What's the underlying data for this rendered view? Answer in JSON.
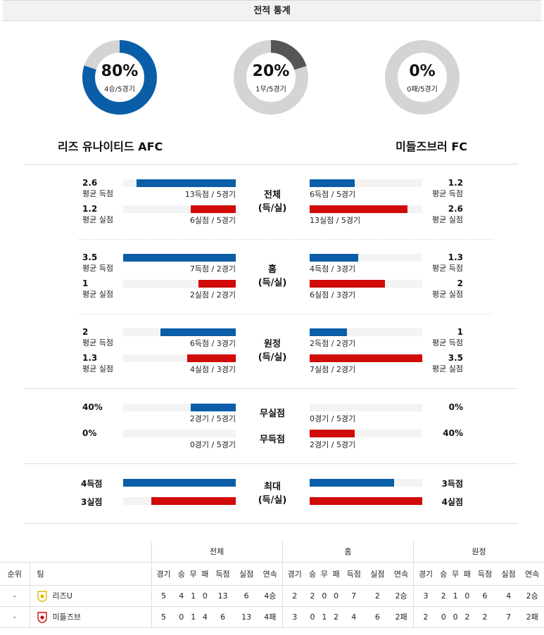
{
  "title": "전적 통계",
  "donuts": [
    {
      "pct": "80%",
      "sub": "4승/5경기",
      "fraction": 0.8,
      "color": "#0a5ea8"
    },
    {
      "pct": "20%",
      "sub": "1무/5경기",
      "fraction": 0.2,
      "color": "#555555"
    },
    {
      "pct": "0%",
      "sub": "0패/5경기",
      "fraction": 0.0,
      "color": "#555555"
    }
  ],
  "home_team": "리즈 유나이티드 AFC",
  "away_team": "미들즈브러 FC",
  "sections": [
    {
      "mid": [
        "전체",
        "(득/실)"
      ],
      "rows": [
        {
          "lval": "2.6",
          "llbl": "평균 득점",
          "lfrac": 0.88,
          "lcap": "13득점 / 5경기",
          "lcolor": "blue",
          "rval": "1.2",
          "rlbl": "평균 득점",
          "rfrac": 0.4,
          "rcap": "6득점 / 5경기",
          "rcolor": "blue"
        },
        {
          "lval": "1.2",
          "llbl": "평균 실점",
          "lfrac": 0.4,
          "lcap": "6실점 / 5경기",
          "lcolor": "red",
          "rval": "2.6",
          "rlbl": "평균 실점",
          "rfrac": 0.87,
          "rcap": "13실점 / 5경기",
          "rcolor": "red"
        }
      ]
    },
    {
      "mid": [
        "홈",
        "(득/실)"
      ],
      "rows": [
        {
          "lval": "3.5",
          "llbl": "평균 득점",
          "lfrac": 1.0,
          "lcap": "7득점 / 2경기",
          "lcolor": "blue",
          "rval": "1.3",
          "rlbl": "평균 득점",
          "rfrac": 0.43,
          "rcap": "4득점 / 3경기",
          "rcolor": "blue"
        },
        {
          "lval": "1",
          "llbl": "평균 실점",
          "lfrac": 0.33,
          "lcap": "2실점 / 2경기",
          "lcolor": "red",
          "rval": "2",
          "rlbl": "평균 실점",
          "rfrac": 0.67,
          "rcap": "6실점 / 3경기",
          "rcolor": "red"
        }
      ]
    },
    {
      "mid": [
        "원정",
        "(득/실)"
      ],
      "rows": [
        {
          "lval": "2",
          "llbl": "평균 득점",
          "lfrac": 0.67,
          "lcap": "6득점 / 3경기",
          "lcolor": "blue",
          "rval": "1",
          "rlbl": "평균 득점",
          "rfrac": 0.33,
          "rcap": "2득점 / 2경기",
          "rcolor": "blue"
        },
        {
          "lval": "1.3",
          "llbl": "평균 실점",
          "lfrac": 0.43,
          "lcap": "4실점 / 3경기",
          "lcolor": "red",
          "rval": "3.5",
          "rlbl": "평균 실점",
          "rfrac": 1.0,
          "rcap": "7실점 / 2경기",
          "rcolor": "red"
        }
      ]
    }
  ],
  "clean": {
    "rows": [
      {
        "mid": "무실점",
        "lval": "40%",
        "lfrac": 0.4,
        "lcap": "2경기 / 5경기",
        "lcolor": "blue",
        "rval": "0%",
        "rfrac": 0.0,
        "rcap": "0경기 / 5경기",
        "rcolor": "blue"
      },
      {
        "mid": "무득점",
        "lval": "0%",
        "lfrac": 0.0,
        "lcap": "0경기 / 5경기",
        "lcolor": "blue",
        "rval": "40%",
        "rfrac": 0.4,
        "rcap": "2경기 / 5경기",
        "rcolor": "red"
      }
    ]
  },
  "maxsec": {
    "mid": [
      "최대",
      "(득/실)"
    ],
    "rows": [
      {
        "lval": "4득점",
        "lfrac": 1.0,
        "lcolor": "blue",
        "rval": "3득점",
        "rfrac": 0.75,
        "rcolor": "blue"
      },
      {
        "lval": "3실점",
        "lfrac": 0.75,
        "lcolor": "red",
        "rval": "4실점",
        "rfrac": 1.0,
        "rcolor": "red"
      }
    ]
  },
  "table": {
    "groups": [
      "전체",
      "홈",
      "원정"
    ],
    "rank_header": "순위",
    "team_header": "팀",
    "cols": [
      "경기",
      "승",
      "무",
      "패",
      "득점",
      "실점",
      "연속"
    ],
    "rows": [
      {
        "rank": "-",
        "team": "리즈U",
        "emblem_color": "#e0b800",
        "all": [
          "5",
          "4",
          "1",
          "0",
          "13",
          "6",
          "4승"
        ],
        "home": [
          "2",
          "2",
          "0",
          "0",
          "7",
          "2",
          "2승"
        ],
        "away": [
          "3",
          "2",
          "1",
          "0",
          "6",
          "4",
          "2승"
        ]
      },
      {
        "rank": "-",
        "team": "미들즈브",
        "emblem_color": "#d10a0a",
        "all": [
          "5",
          "0",
          "1",
          "4",
          "6",
          "13",
          "4패"
        ],
        "home": [
          "3",
          "0",
          "1",
          "2",
          "4",
          "6",
          "2패"
        ],
        "away": [
          "2",
          "0",
          "0",
          "2",
          "2",
          "7",
          "2패"
        ]
      }
    ]
  }
}
